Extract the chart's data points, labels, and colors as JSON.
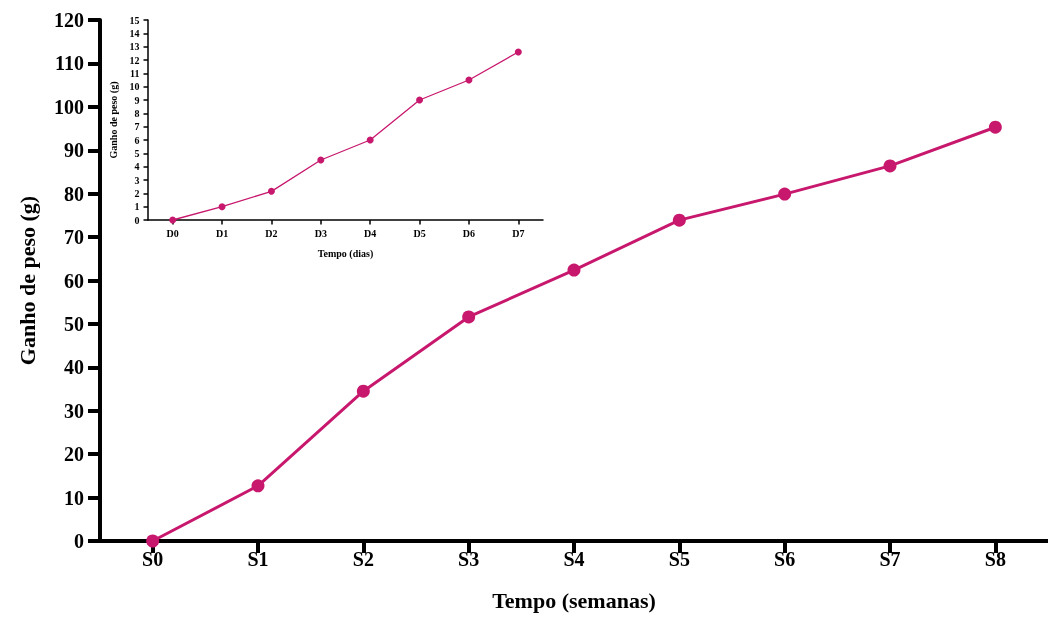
{
  "chart_data": [
    {
      "type": "line",
      "xlabel": "Tempo (semanas)",
      "ylabel": "Ganho de peso (g)",
      "categories": [
        "S0",
        "S1",
        "S2",
        "S3",
        "S4",
        "S5",
        "S6",
        "S7",
        "S8"
      ],
      "series": [
        {
          "color": "#c8186e",
          "values": [
            0,
            12.7,
            34.5,
            51.6,
            62.4,
            73.9,
            79.9,
            86.4,
            95.3
          ]
        }
      ],
      "ylim": [
        0,
        120
      ],
      "yticks": [
        0,
        10,
        20,
        30,
        40,
        50,
        60,
        70,
        80,
        90,
        100,
        110,
        120
      ],
      "grid": false,
      "marker": "circle",
      "line_style": "solid"
    },
    {
      "type": "line",
      "xlabel": "Tempo (dias)",
      "ylabel": "Ganho de peso (g)",
      "categories": [
        "D0",
        "D1",
        "D2",
        "D3",
        "D4",
        "D5",
        "D6",
        "D7"
      ],
      "series": [
        {
          "color": "#c8186e",
          "values": [
            0,
            1,
            2.15,
            4.5,
            6,
            9,
            10.5,
            12.6
          ]
        }
      ],
      "ylim": [
        0,
        15
      ],
      "yticks": [
        0,
        1,
        2,
        3,
        4,
        5,
        6,
        7,
        8,
        9,
        10,
        11,
        12,
        13,
        14,
        15
      ],
      "grid": false,
      "marker": "circle",
      "line_style": "solid"
    }
  ]
}
